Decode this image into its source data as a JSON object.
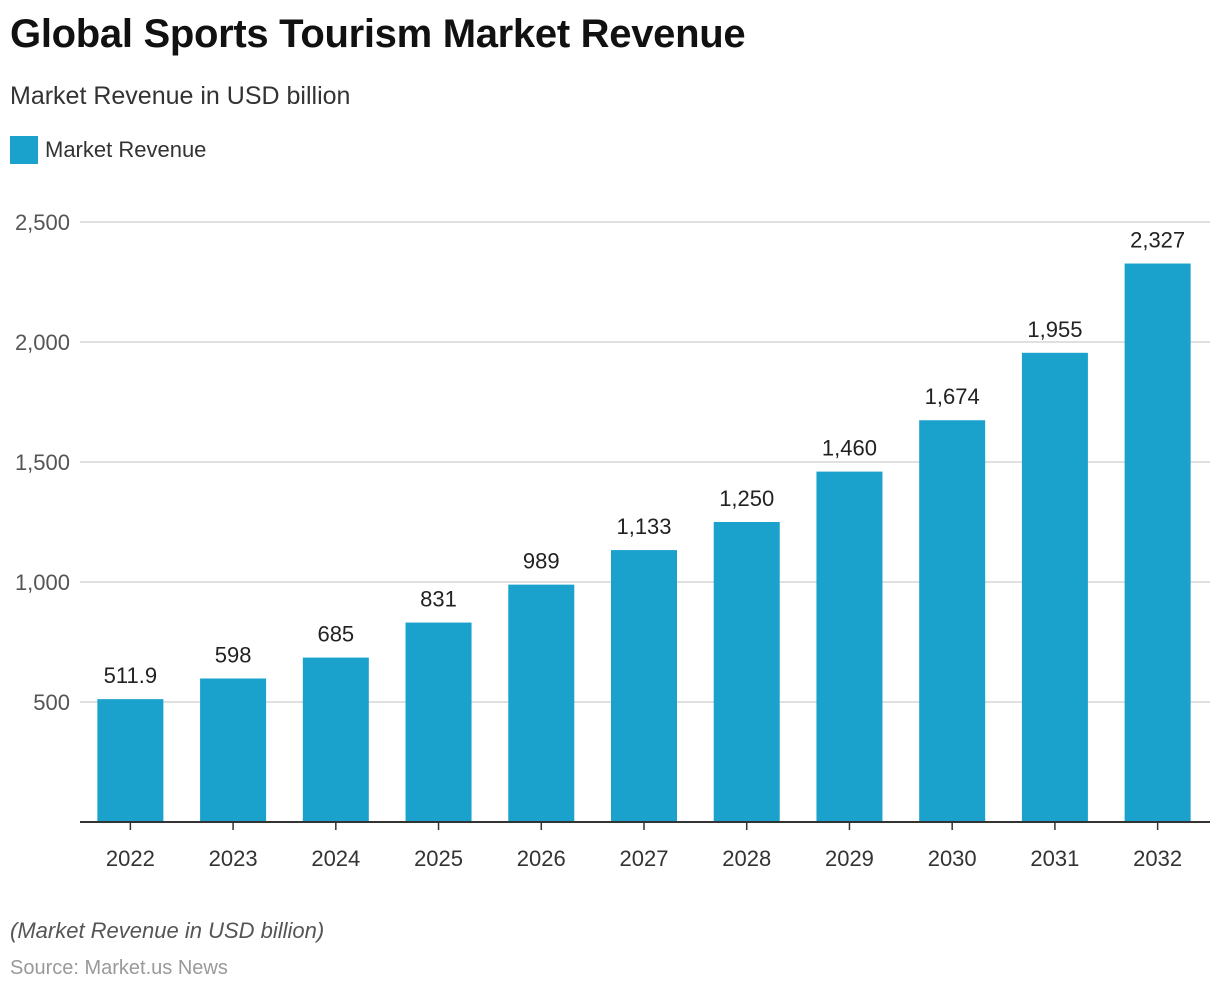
{
  "title": "Global Sports Tourism Market Revenue",
  "subtitle": "Market Revenue in USD billion",
  "note": "(Market Revenue in USD billion)",
  "source": "Source: Market.us News",
  "colors": {
    "bar": "#1aa1cc",
    "grid": "#d6d6d6",
    "axis": "#333333"
  },
  "chart_data": {
    "type": "bar",
    "title": "Global Sports Tourism Market Revenue",
    "subtitle": "Market Revenue in USD billion",
    "xlabel": "",
    "ylabel": "",
    "categories": [
      "2022",
      "2023",
      "2024",
      "2025",
      "2026",
      "2027",
      "2028",
      "2029",
      "2030",
      "2031",
      "2032"
    ],
    "series": [
      {
        "name": "Market Revenue",
        "values": [
          511.9,
          598,
          685,
          831,
          989,
          1133,
          1250,
          1460,
          1674,
          1955,
          2327
        ],
        "labels": [
          "511.9",
          "598",
          "685",
          "831",
          "989",
          "1,133",
          "1,250",
          "1,460",
          "1,674",
          "1,955",
          "2,327"
        ]
      }
    ],
    "ylim": [
      0,
      2500
    ],
    "yticks": [
      500,
      1000,
      1500,
      2000,
      2500
    ],
    "ytick_labels": [
      "500",
      "1,000",
      "1,500",
      "2,000",
      "2,500"
    ],
    "grid": true,
    "legend_position": "top-left"
  }
}
